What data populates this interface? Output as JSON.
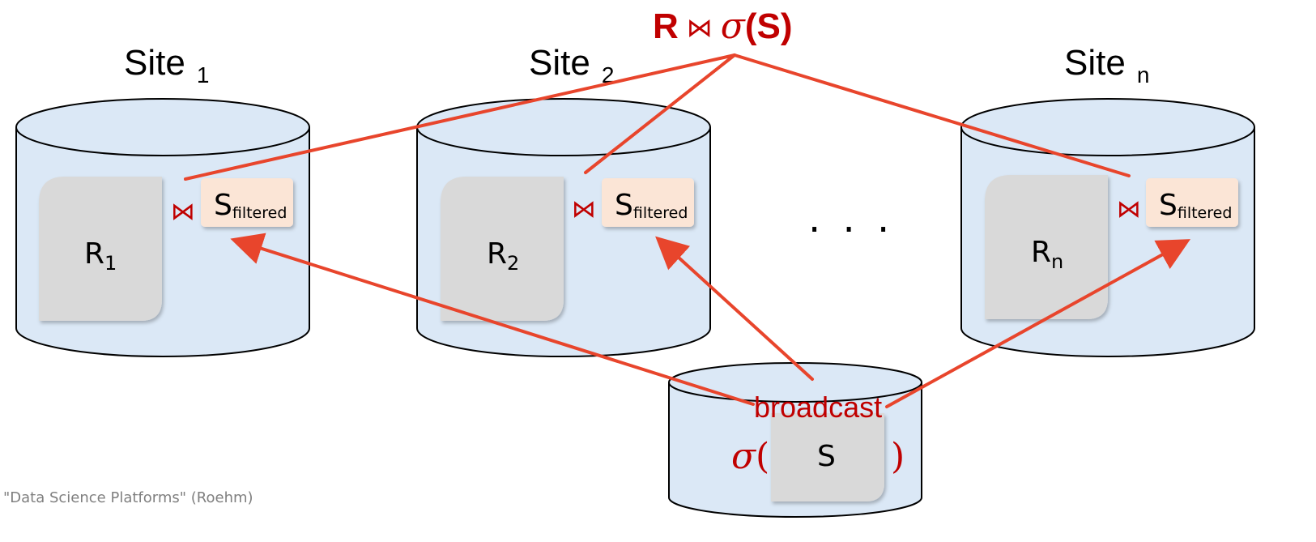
{
  "title": {
    "main": "R",
    "join": "⋈",
    "sigma": "σ",
    "arg": "(S)"
  },
  "sites": [
    {
      "label": "Site",
      "sub": "1",
      "r_main": "R",
      "r_sub": "1"
    },
    {
      "label": "Site",
      "sub": "2",
      "r_main": "R",
      "r_sub": "2"
    },
    {
      "label": "Site",
      "sub": "n",
      "r_main": "R",
      "r_sub": "n"
    }
  ],
  "s_filtered": {
    "main": "S",
    "sub": "filtered"
  },
  "join_symbol": "⋈",
  "ellipsis": "· · ·",
  "broadcast": {
    "label": "broadcast",
    "sigma": "σ",
    "open": "(",
    "s": "S",
    "close": ")"
  },
  "footer": "\"Data Science Platforms\" (Roehm)",
  "colors": {
    "cylinder_fill": "#dbe8f6",
    "cylinder_stroke": "#000000",
    "r_box": "#d9d9d9",
    "s_box": "#fbe5d6",
    "arrow": "#e8452c",
    "accent_text": "#c00000"
  }
}
